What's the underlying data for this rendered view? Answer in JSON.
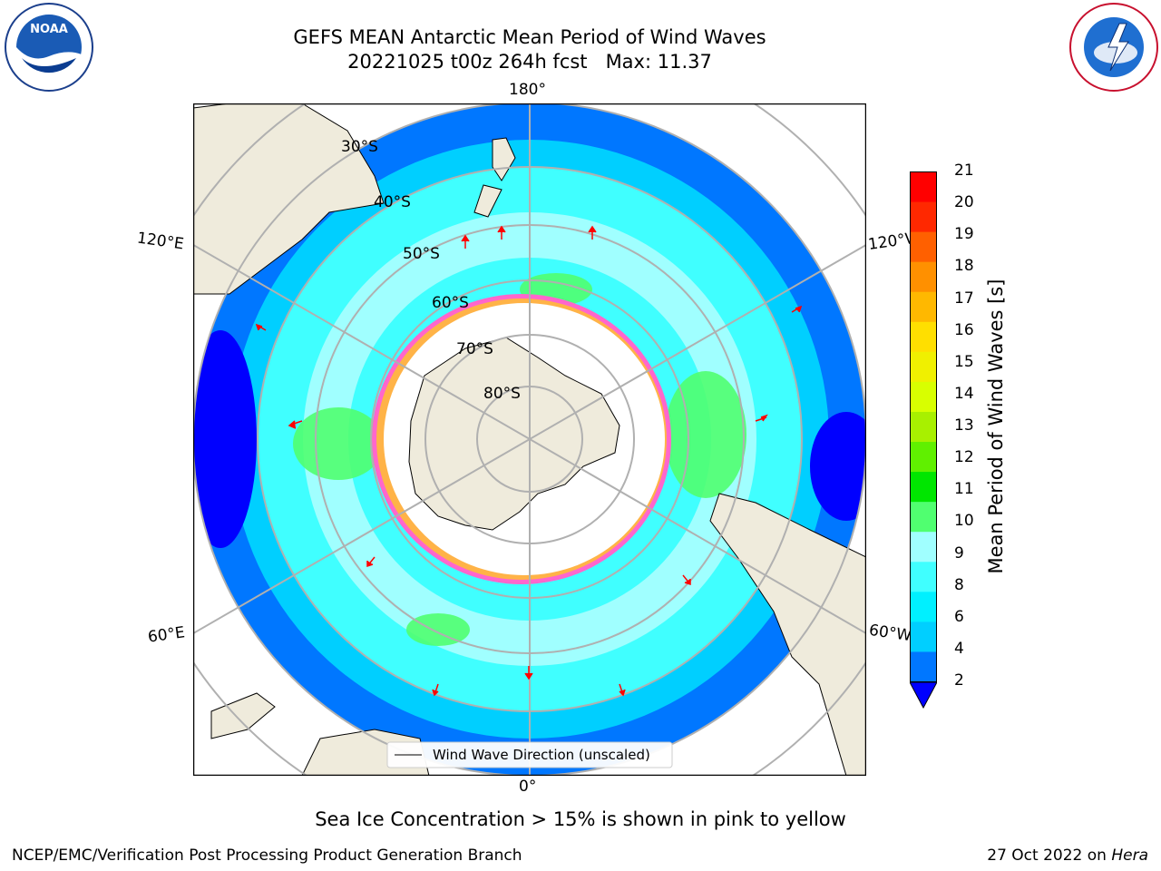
{
  "title": {
    "line1": "GEFS MEAN Antarctic Mean Period of Wind Waves",
    "line2": "20221025 t00z 264h fcst   Max: 11.37"
  },
  "logos": {
    "noaa": {
      "text": "NOAA",
      "ring_text": "NATIONAL OCEANIC AND ATMOSPHERIC ADMINISTRATION · U.S. DEPARTMENT OF COMMERCE"
    },
    "nws": {
      "ring_text": "NATIONAL WEATHER SERVICE"
    }
  },
  "map": {
    "projection": "south-polar-stereographic",
    "longitude_labels": {
      "top": "180°",
      "bottom": "0°",
      "upper_left": "120°E",
      "upper_right": "120°W",
      "lower_left": "60°E",
      "lower_right": "60°W"
    },
    "latitude_labels": [
      "30°S",
      "40°S",
      "50°S",
      "60°S",
      "70°S",
      "80°S"
    ],
    "legend_label": "Wind Wave Direction (unscaled)"
  },
  "colorbar": {
    "label": "Mean Period of Wind Waves [s]",
    "ticks": [
      "21",
      "20",
      "19",
      "18",
      "17",
      "16",
      "15",
      "14",
      "13",
      "12",
      "11",
      "10",
      "9",
      "8",
      "6",
      "4",
      "2"
    ],
    "colors": [
      "#0000ff",
      "#0077ff",
      "#00cfff",
      "#00f0ff",
      "#40ffff",
      "#a0ffff",
      "#50ff70",
      "#00e600",
      "#60f000",
      "#a8f000",
      "#d8ff00",
      "#f0f000",
      "#ffdf00",
      "#ffb800",
      "#ff9000",
      "#ff6000",
      "#ff2800",
      "#ff0000"
    ]
  },
  "note": "Sea Ice Concentration > 15% is shown in pink to yellow",
  "footer": {
    "left": "NCEP/EMC/Verification Post Processing Product Generation Branch",
    "right_prefix": "27 Oct 2022 on ",
    "right_host": "Hera"
  }
}
